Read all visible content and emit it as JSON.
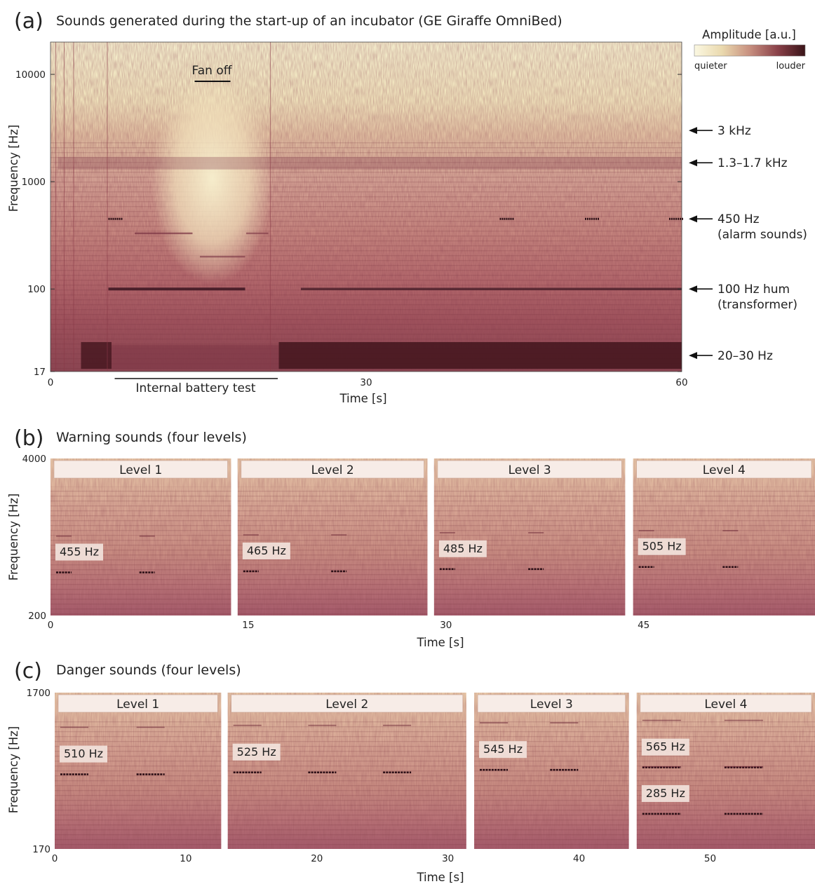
{
  "chart_data": [
    {
      "type": "heatmap",
      "panel": "(a)",
      "title": "Sounds generated during the start-up of an incubator (GE Giraffe OmniBed)",
      "xlabel": "Time [s]",
      "ylabel": "Frequency [Hz]",
      "x_ticks": [
        "0",
        "30",
        "60"
      ],
      "y_ticks": [
        "10000",
        "1000",
        "100",
        "17"
      ],
      "xlim": [
        0,
        60
      ],
      "ylim": [
        17,
        20000
      ],
      "yscale": "log",
      "colorbar": {
        "title": "Amplitude [a.u.]",
        "low_label": "quieter",
        "high_label": "louder",
        "colors": [
          "#fbf8e2",
          "#ead9ae",
          "#c78f7f",
          "#8a4149",
          "#3a1419"
        ]
      },
      "annotations": {
        "fan_off": {
          "label": "Fan off",
          "x_start": 13.7,
          "x_end": 17.1
        },
        "battery_test": {
          "label": "Internal battery test",
          "x_start": 6.1,
          "x_end": 21.6
        }
      },
      "frequency_markers": [
        {
          "lines": [
            "3 kHz"
          ],
          "freq": 3000
        },
        {
          "lines": [
            "1.3–1.7 kHz"
          ],
          "freq": 1500
        },
        {
          "lines": [
            "450 Hz",
            "(alarm sounds)"
          ],
          "freq": 450
        },
        {
          "lines": [
            "100 Hz hum",
            "(transformer)"
          ],
          "freq": 100
        },
        {
          "lines": [
            "20–30 Hz"
          ],
          "freq": 24
        }
      ]
    },
    {
      "type": "heatmap",
      "panel": "(b)",
      "title": "Warning sounds (four levels)",
      "xlabel": "Time [s]",
      "ylabel": "Frequency [Hz]",
      "x_ticks": [
        "0",
        "15",
        "30",
        "45"
      ],
      "y_ticks": [
        "4000",
        "200"
      ],
      "xlim": [
        0,
        58
      ],
      "ylim": [
        200,
        4000
      ],
      "yscale": "log",
      "levels": [
        {
          "label": "Level 1",
          "tone": "455 Hz",
          "x_start": 0,
          "x_end": 13.7
        },
        {
          "label": "Level 2",
          "tone": "465 Hz",
          "x_start": 14.2,
          "x_end": 28.6
        },
        {
          "label": "Level 3",
          "tone": "485 Hz",
          "x_start": 29.1,
          "x_end": 43.6
        },
        {
          "label": "Level 4",
          "tone": "505 Hz",
          "x_start": 44.2,
          "x_end": 58
        }
      ]
    },
    {
      "type": "heatmap",
      "panel": "(c)",
      "title": "Danger sounds (four levels)",
      "xlabel": "Time [s]",
      "ylabel": "Frequency [Hz]",
      "x_ticks": [
        "0",
        "10",
        "20",
        "30",
        "40",
        "50"
      ],
      "y_ticks": [
        "1700",
        "170"
      ],
      "xlim": [
        0,
        58
      ],
      "ylim": [
        170,
        1700
      ],
      "yscale": "log",
      "levels": [
        {
          "label": "Level 1",
          "tones": [
            "510 Hz"
          ],
          "x_start": 0,
          "x_end": 12.7
        },
        {
          "label": "Level 2",
          "tones": [
            "525 Hz"
          ],
          "x_start": 13.2,
          "x_end": 31.4
        },
        {
          "label": "Level 3",
          "tones": [
            "545 Hz"
          ],
          "x_start": 32,
          "x_end": 43.8
        },
        {
          "label": "Level 4",
          "tones": [
            "565 Hz",
            "285 Hz"
          ],
          "x_start": 44.4,
          "x_end": 58
        }
      ]
    }
  ]
}
